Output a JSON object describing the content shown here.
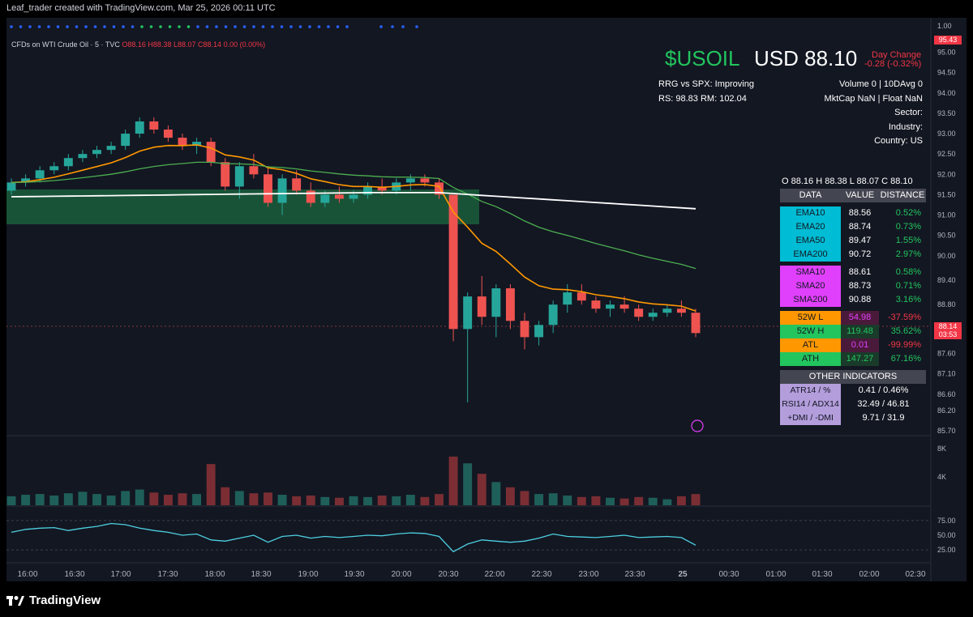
{
  "credit": "Leaf_trader created with TradingView.com, Mar 25, 2026 00:11 UTC",
  "symbol_line": {
    "name": "CFDs on WTI Crude Oil · 5 · TVC",
    "o": "O88.16",
    "h": "H88.38",
    "l": "L88.07",
    "c": "C88.14",
    "chg": "0.00 (0.00%)"
  },
  "header": {
    "ticker": "$USOIL",
    "price": "USD 88.10",
    "day_change_label": "Day Change",
    "day_change_value": "-0.28 (-0.32%)",
    "rrg": "RRG vs SPX: Improving",
    "rs": "RS: 98.83  RM: 102.04",
    "volume": "Volume 0 | 10DAvg 0",
    "mktcap": "MktCap NaN | Float NaN",
    "sector": "Sector:",
    "industry": "Industry:",
    "country": "Country: US"
  },
  "ohlc_line": "O 88.16   H 88.38   L 88.07   C 88.10",
  "table": {
    "headers": [
      "DATA",
      "VALUE",
      "DISTANCE"
    ],
    "ema": [
      {
        "label": "EMA10",
        "value": "88.56",
        "dist": "0.52%"
      },
      {
        "label": "EMA20",
        "value": "88.74",
        "dist": "0.73%"
      },
      {
        "label": "EMA50",
        "value": "89.47",
        "dist": "1.55%"
      },
      {
        "label": "EMA200",
        "value": "90.72",
        "dist": "2.97%"
      }
    ],
    "sma": [
      {
        "label": "SMA10",
        "value": "88.61",
        "dist": "0.58%"
      },
      {
        "label": "SMA20",
        "value": "88.73",
        "dist": "0.71%"
      },
      {
        "label": "SMA200",
        "value": "90.88",
        "dist": "3.16%"
      }
    ],
    "extremes": [
      {
        "label": "52W L",
        "value": "54.98",
        "dist": "-37.59%",
        "color": "#ff9800"
      },
      {
        "label": "52W H",
        "value": "119.48",
        "dist": "35.62%",
        "color": "#22c55e"
      },
      {
        "label": "ATL",
        "value": "0.01",
        "dist": "-99.99%",
        "color": "#ff9800"
      },
      {
        "label": "ATH",
        "value": "147.27",
        "dist": "67.16%",
        "color": "#22c55e"
      }
    ],
    "other_header": "OTHER INDICATORS",
    "other": [
      {
        "label": "ATR14 / %",
        "value": "0.41 / 0.46%"
      },
      {
        "label": "RSI14 / ADX14",
        "value": "32.49 / 46.81"
      },
      {
        "label": "+DMI / -DMI",
        "value": "9.71 / 31.9"
      }
    ]
  },
  "colors": {
    "bull": "#26a69a",
    "bear": "#ef5350",
    "ema_orange": "#ff9800",
    "ema_green": "#4caf50",
    "ema_white": "#ffffff",
    "rsi": "#4dd0e1",
    "zone": "#1b5e3b"
  },
  "price_tags": {
    "top": "95.43",
    "last": "88.14",
    "countdown": "03:53"
  },
  "bottom_brand": "TradingView",
  "chart_data": {
    "type": "candlestick",
    "y_axis_ticks": [
      "95.00",
      "94.50",
      "94.00",
      "93.50",
      "93.00",
      "92.50",
      "92.00",
      "91.50",
      "91.00",
      "90.50",
      "90.00",
      "89.40",
      "88.80",
      "88.20",
      "87.60",
      "87.10",
      "86.60",
      "86.20",
      "85.70"
    ],
    "top_axis_label": "1.00",
    "x_axis_ticks": [
      "16:00",
      "16:30",
      "17:00",
      "17:30",
      "18:00",
      "18:30",
      "19:00",
      "19:30",
      "20:00",
      "20:30",
      "22:00",
      "22:30",
      "23:00",
      "23:30",
      "25",
      "00:30",
      "01:00",
      "01:30",
      "02:00",
      "02:30"
    ],
    "volume_axis_ticks": [
      "8K",
      "4K"
    ],
    "rsi_axis_ticks": [
      "75.00",
      "50.00",
      "25.00"
    ],
    "candles": [
      [
        91.6,
        91.9,
        91.5,
        91.8
      ],
      [
        91.8,
        92.0,
        91.7,
        91.9
      ],
      [
        91.9,
        92.2,
        91.8,
        92.1
      ],
      [
        92.1,
        92.3,
        92.0,
        92.2
      ],
      [
        92.2,
        92.5,
        92.1,
        92.4
      ],
      [
        92.4,
        92.6,
        92.3,
        92.5
      ],
      [
        92.5,
        92.7,
        92.4,
        92.6
      ],
      [
        92.6,
        92.8,
        92.5,
        92.7
      ],
      [
        92.7,
        93.1,
        92.6,
        93.0
      ],
      [
        93.0,
        93.4,
        92.9,
        93.3
      ],
      [
        93.3,
        93.4,
        93.0,
        93.1
      ],
      [
        93.1,
        93.2,
        92.8,
        92.9
      ],
      [
        92.9,
        93.0,
        92.6,
        92.7
      ],
      [
        92.7,
        92.9,
        92.5,
        92.8
      ],
      [
        92.8,
        92.9,
        92.2,
        92.3
      ],
      [
        92.3,
        92.4,
        91.6,
        91.7
      ],
      [
        91.7,
        92.3,
        91.4,
        92.2
      ],
      [
        92.2,
        92.5,
        91.9,
        92.0
      ],
      [
        92.0,
        92.2,
        91.2,
        91.3
      ],
      [
        91.3,
        92.0,
        91.0,
        91.9
      ],
      [
        91.9,
        92.1,
        91.5,
        91.6
      ],
      [
        91.6,
        91.8,
        91.2,
        91.3
      ],
      [
        91.3,
        91.6,
        91.2,
        91.5
      ],
      [
        91.5,
        91.7,
        91.3,
        91.4
      ],
      [
        91.4,
        91.6,
        91.3,
        91.5
      ],
      [
        91.5,
        91.8,
        91.4,
        91.7
      ],
      [
        91.7,
        91.9,
        91.5,
        91.6
      ],
      [
        91.6,
        91.9,
        91.5,
        91.8
      ],
      [
        91.8,
        92.0,
        91.6,
        91.9
      ],
      [
        91.9,
        92.0,
        91.7,
        91.8
      ],
      [
        91.8,
        91.9,
        91.4,
        91.5
      ],
      [
        91.5,
        91.5,
        87.9,
        88.2
      ],
      [
        88.2,
        89.1,
        86.4,
        89.0
      ],
      [
        89.0,
        89.5,
        88.3,
        88.5
      ],
      [
        88.5,
        89.3,
        88.0,
        89.2
      ],
      [
        89.2,
        89.3,
        88.2,
        88.4
      ],
      [
        88.4,
        88.6,
        87.7,
        88.0
      ],
      [
        88.0,
        88.4,
        87.8,
        88.3
      ],
      [
        88.3,
        88.9,
        88.1,
        88.8
      ],
      [
        88.8,
        89.3,
        88.6,
        89.1
      ],
      [
        89.1,
        89.3,
        88.8,
        88.9
      ],
      [
        88.9,
        89.0,
        88.6,
        88.7
      ],
      [
        88.7,
        88.9,
        88.5,
        88.8
      ],
      [
        88.8,
        89.0,
        88.6,
        88.7
      ],
      [
        88.7,
        88.8,
        88.4,
        88.5
      ],
      [
        88.5,
        88.7,
        88.4,
        88.6
      ],
      [
        88.6,
        88.8,
        88.5,
        88.7
      ],
      [
        88.7,
        88.9,
        88.5,
        88.6
      ],
      [
        88.6,
        88.7,
        88.0,
        88.1
      ]
    ],
    "volume": [
      1.2,
      1.4,
      1.5,
      1.3,
      1.6,
      1.8,
      1.5,
      1.3,
      1.9,
      2.1,
      1.7,
      1.4,
      1.6,
      1.5,
      5.5,
      2.4,
      1.9,
      1.6,
      1.7,
      1.4,
      1.2,
      1.3,
      1.1,
      1.0,
      1.2,
      1.1,
      1.3,
      1.2,
      1.4,
      1.1,
      1.5,
      6.5,
      5.6,
      4.2,
      3.1,
      2.4,
      1.9,
      1.5,
      1.6,
      1.3,
      1.1,
      1.2,
      1.0,
      0.9,
      1.1,
      1.0,
      0.8,
      1.2,
      1.5
    ],
    "rsi": [
      55,
      60,
      62,
      63,
      58,
      62,
      65,
      70,
      68,
      62,
      58,
      55,
      50,
      52,
      42,
      40,
      45,
      50,
      38,
      48,
      50,
      45,
      48,
      46,
      48,
      50,
      49,
      52,
      54,
      53,
      48,
      22,
      35,
      42,
      40,
      38,
      40,
      45,
      52,
      48,
      47,
      46,
      48,
      50,
      46,
      47,
      48,
      46,
      33
    ],
    "ylim": [
      85.7,
      95.3
    ]
  }
}
